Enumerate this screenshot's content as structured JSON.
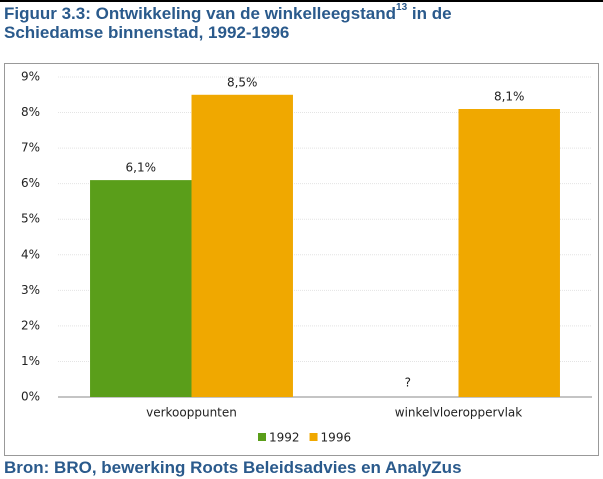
{
  "title_line1": "Figuur 3.3: Ontwikkeling van de winkelleegstand",
  "title_superscript": "13",
  "title_line1_end": " in de",
  "title_line2": "Schiedamse binnenstad, 1992-1996",
  "chart_data": {
    "type": "bar",
    "categories": [
      "verkooppunten",
      "winkelvloeroppervlak"
    ],
    "series": [
      {
        "name": "1992",
        "color": "#5a9e1a",
        "values": [
          6.1,
          null
        ],
        "value_labels": [
          "6,1%",
          "?"
        ]
      },
      {
        "name": "1996",
        "color": "#f0a800",
        "values": [
          8.5,
          8.1
        ],
        "value_labels": [
          "8,5%",
          "8,1%"
        ]
      }
    ],
    "ylim": [
      0,
      9
    ],
    "yticks": [
      {
        "value": 0,
        "label": "0%"
      },
      {
        "value": 1,
        "label": "1%"
      },
      {
        "value": 2,
        "label": "2%"
      },
      {
        "value": 3,
        "label": "3%"
      },
      {
        "value": 4,
        "label": "4%"
      },
      {
        "value": 5,
        "label": "5%"
      },
      {
        "value": 6,
        "label": "6%"
      },
      {
        "value": 7,
        "label": "7%"
      },
      {
        "value": 8,
        "label": "8%"
      },
      {
        "value": 9,
        "label": "9%"
      }
    ],
    "grid": true,
    "legend": "bottom"
  },
  "source": "Bron: BRO, bewerking Roots Beleidsadvies en AnalyZus"
}
